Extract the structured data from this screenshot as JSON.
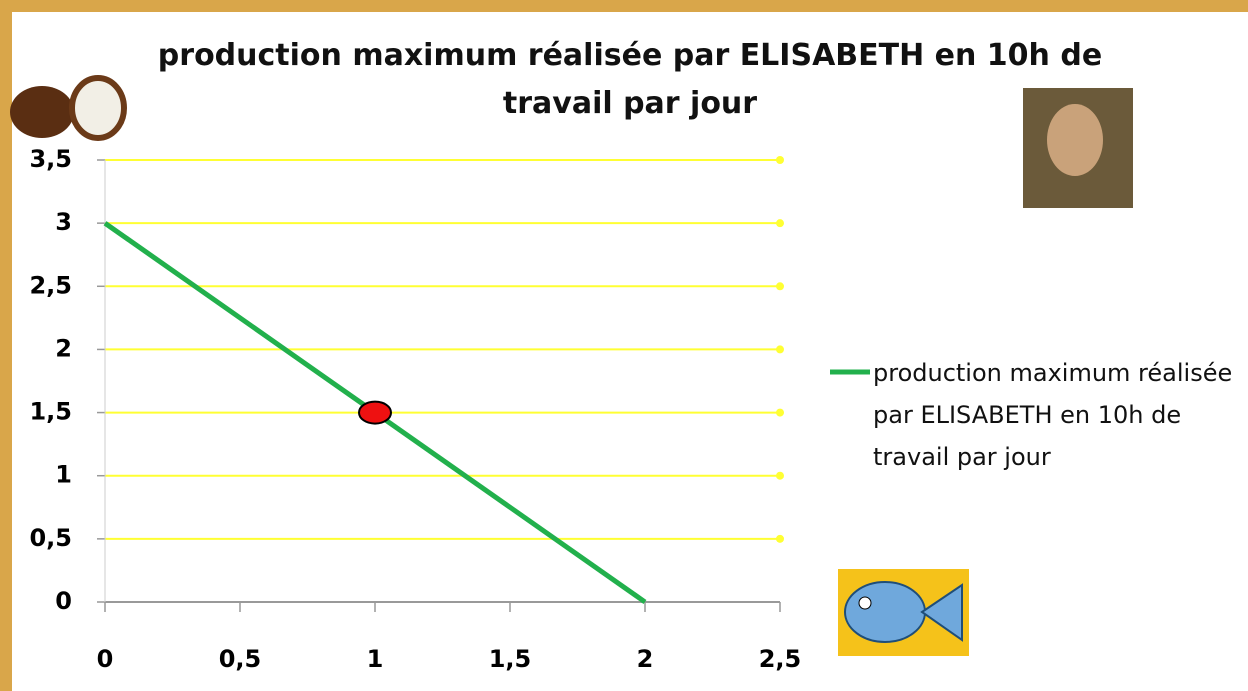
{
  "chart_data": {
    "type": "line",
    "title": "production maximum réalisée par ELISABETH en 10h de travail par jour",
    "x": [
      0,
      2
    ],
    "series": [
      {
        "name": "production maximum réalisée par ELISABETH en 10h de travail par jour",
        "color": "#22b04c",
        "values": [
          3,
          0
        ]
      }
    ],
    "highlight": {
      "x": 1,
      "y": 1.5,
      "color": "#ee1111"
    },
    "xlim": [
      0,
      2.5
    ],
    "xticks": [
      0,
      {
        "value": 0.5,
        "label": "0,5"
      },
      1,
      {
        "value": 1.5,
        "label": "1,5"
      },
      2,
      {
        "value": 2.5,
        "label": "2,5"
      }
    ],
    "ylim": [
      0,
      3.5
    ],
    "yticks": [
      0,
      {
        "value": 0.5,
        "label": "0,5"
      },
      1,
      {
        "value": 1.5,
        "label": "1,5"
      },
      2,
      {
        "value": 2.5,
        "label": "2,5"
      },
      3,
      {
        "value": 3.5,
        "label": "3,5"
      }
    ],
    "grid": true,
    "grid_color": "#ffff33",
    "legend": "right"
  }
}
